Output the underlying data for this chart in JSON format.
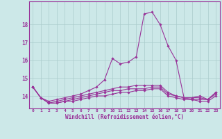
{
  "x": [
    0,
    1,
    2,
    3,
    4,
    5,
    6,
    7,
    8,
    9,
    10,
    11,
    12,
    13,
    14,
    15,
    16,
    17,
    18,
    19,
    20,
    21,
    22,
    23
  ],
  "line1": [
    14.5,
    13.9,
    13.7,
    13.8,
    13.9,
    14.0,
    14.1,
    14.3,
    14.5,
    14.9,
    16.1,
    15.8,
    15.9,
    16.2,
    18.6,
    18.7,
    18.0,
    16.8,
    16.0,
    13.9,
    13.9,
    14.0,
    13.8,
    14.2
  ],
  "line2": [
    14.5,
    13.9,
    13.6,
    13.7,
    13.8,
    13.9,
    14.0,
    14.1,
    14.2,
    14.3,
    14.4,
    14.5,
    14.5,
    14.6,
    14.6,
    14.6,
    14.6,
    14.2,
    14.0,
    13.9,
    13.9,
    13.9,
    13.8,
    14.2
  ],
  "line3": [
    14.5,
    13.9,
    13.6,
    13.6,
    13.7,
    13.8,
    13.9,
    14.0,
    14.1,
    14.2,
    14.3,
    14.3,
    14.4,
    14.4,
    14.4,
    14.5,
    14.5,
    14.1,
    14.0,
    13.9,
    13.8,
    13.8,
    13.8,
    14.1
  ],
  "line4": [
    14.5,
    13.9,
    13.6,
    13.6,
    13.7,
    13.7,
    13.8,
    13.9,
    14.0,
    14.0,
    14.1,
    14.2,
    14.2,
    14.3,
    14.3,
    14.4,
    14.4,
    14.0,
    13.9,
    13.8,
    13.8,
    13.7,
    13.7,
    14.0
  ],
  "line_color": "#993399",
  "bg_color": "#cce8e8",
  "grid_color": "#aacccc",
  "xlabel": "Windchill (Refroidissement éolien,°C)",
  "ylim": [
    13.3,
    19.3
  ],
  "yticks": [
    14,
    15,
    16,
    17,
    18
  ],
  "xticks": [
    0,
    1,
    2,
    3,
    4,
    5,
    6,
    7,
    8,
    9,
    10,
    11,
    12,
    13,
    14,
    15,
    16,
    17,
    18,
    19,
    20,
    21,
    22,
    23
  ]
}
